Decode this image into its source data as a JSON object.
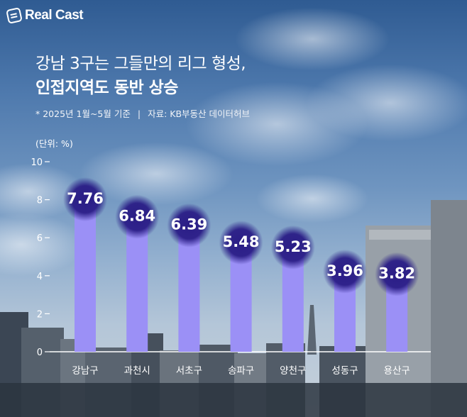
{
  "brand": {
    "name": "Real Cast"
  },
  "header": {
    "title_line1": "강남 3구는 그들만의 리그 형성,",
    "title_line2": "인접지역도 동반 상승"
  },
  "note": {
    "period": "* 2025년 1월~5월 기준",
    "separator": "|",
    "source": "자료: KB부동산 데이터허브"
  },
  "unit_label": "(단위: %)",
  "colors": {
    "bar": "#9b90f6",
    "bubble": "#2a1d86",
    "text": "#ffffff"
  },
  "chart_data": {
    "type": "bar",
    "categories": [
      "강남구",
      "과천시",
      "서초구",
      "송파구",
      "양천구",
      "성동구",
      "용산구"
    ],
    "values": [
      7.76,
      6.84,
      6.39,
      5.48,
      5.23,
      3.96,
      3.82
    ],
    "value_labels": [
      "7.76",
      "6.84",
      "6.39",
      "5.48",
      "5.23",
      "3.96",
      "3.82"
    ],
    "yticks": [
      "10",
      "8",
      "6",
      "4",
      "2",
      "0"
    ],
    "ylim": [
      0,
      10
    ],
    "grid": false,
    "legend": false
  }
}
